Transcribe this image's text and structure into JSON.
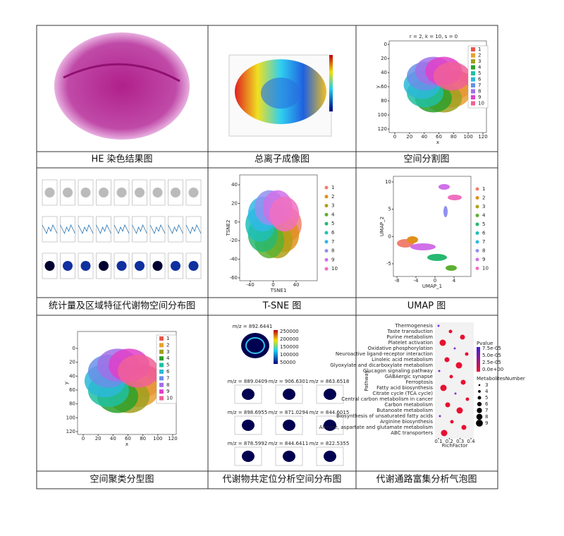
{
  "cells": [
    {
      "caption": "HE 染色结果图"
    },
    {
      "caption": "总离子成像图"
    },
    {
      "caption": "空间分割图",
      "title": "r = 2, k = 10, s = 0",
      "xlabel": "x",
      "ylabel": "y",
      "xticks": [
        0,
        20,
        40,
        60,
        80,
        100,
        120
      ],
      "yticks": [
        0,
        20,
        40,
        60,
        80,
        100,
        120
      ],
      "legend": [
        1,
        2,
        3,
        4,
        5,
        6,
        7,
        8,
        9,
        10
      ],
      "colors": [
        "#e8554e",
        "#e8a030",
        "#a0a020",
        "#2ca02c",
        "#20c0a0",
        "#2cb8d8",
        "#6a8fe8",
        "#a070e8",
        "#e040c8",
        "#f06098"
      ]
    },
    {
      "caption": "统计量及区域特征代谢物空间分布图"
    },
    {
      "caption": "T-SNE 图",
      "xlabel": "TSNE1",
      "ylabel": "TSNE2",
      "xticks": [
        -40,
        0,
        40
      ],
      "yticks": [
        40,
        20,
        0,
        -20,
        -40,
        -60
      ],
      "legend": [
        1,
        2,
        3,
        4,
        5,
        6,
        7,
        8,
        9,
        10
      ],
      "colors": [
        "#f08070",
        "#e0901a",
        "#b0a018",
        "#5cb030",
        "#28b870",
        "#20c0b8",
        "#30b8e8",
        "#9090f0",
        "#d070e8",
        "#f070c0"
      ]
    },
    {
      "caption": "UMAP 图",
      "xlabel": "UMAP_1",
      "ylabel": "UMAP_2",
      "xticks": [
        -8,
        -4,
        0,
        4
      ],
      "yticks": [
        10,
        5,
        0,
        -5
      ],
      "legend": [
        1,
        2,
        3,
        4,
        5,
        6,
        7,
        8,
        9,
        10
      ],
      "colors": [
        "#f08070",
        "#e0901a",
        "#b0a018",
        "#5cb030",
        "#28b870",
        "#20c0b8",
        "#30b8e8",
        "#9090f0",
        "#d070e8",
        "#f070c0"
      ]
    },
    {
      "caption": "空间聚类分型图",
      "xlabel": "x",
      "ylabel": "y",
      "xticks": [
        0,
        20,
        40,
        60,
        80,
        100,
        120
      ],
      "yticks": [
        0,
        20,
        40,
        60,
        80,
        100,
        120
      ],
      "legend": [
        1,
        2,
        3,
        4,
        5,
        6,
        7,
        8,
        9,
        10
      ],
      "colors": [
        "#e8554e",
        "#e8a030",
        "#a0a020",
        "#2ca02c",
        "#20c0a0",
        "#2cb8d8",
        "#6a8fe8",
        "#a070e8",
        "#e040c8",
        "#f06098"
      ]
    },
    {
      "caption": "代谢物共定位分析空间分布图",
      "title": "m/z = 892.6441",
      "colorbar": [
        250000,
        200000,
        150000,
        100000,
        50000
      ],
      "subtitles": [
        "m/z = 889.0409",
        "m/z = 906.6301",
        "m/z = 863.6518",
        "m/z = 898.6955",
        "m/z = 871.0294",
        "m/z = 844.6015",
        "m/z = 878.5992",
        "m/z = 844.6411",
        "m/z = 822.5355"
      ]
    },
    {
      "caption": "代谢通路富集分析气泡图",
      "xlabel": "RichFactor",
      "ylabel": "Pathway",
      "xticks": [
        0.1,
        0.2,
        0.3,
        0.4
      ],
      "pathways": [
        "Thermogenesis",
        "Taste transduction",
        "Purine metabolism",
        "Platelet activation",
        "Oxidative phosphorylation",
        "Neuroactive ligand-receptor interaction",
        "Linoleic acid metabolism",
        "Glyoxylate and dicarboxylate metabolism",
        "Glucagon signaling pathway",
        "GABAergic synapse",
        "Ferroptosis",
        "Fatty acid biosynthesis",
        "Citrate cycle (TCA cycle)",
        "Central carbon metabolism in cancer",
        "Carbon metabolism",
        "Butanoate metabolism",
        "Biosynthesis of unsaturated fatty acids",
        "Arginine biosynthesis",
        "Alanine, aspartate and glutamate metabolism",
        "ABC transporters"
      ],
      "pvalue_title": "Pvalue",
      "pvalue_ticks": [
        "7.5e-05",
        "5.0e-05",
        "2.5e-05",
        "0.0e+00"
      ],
      "size_title": "MetabolitesNumber",
      "size_ticks": [
        3,
        4,
        5,
        6,
        7,
        8,
        9
      ]
    }
  ]
}
